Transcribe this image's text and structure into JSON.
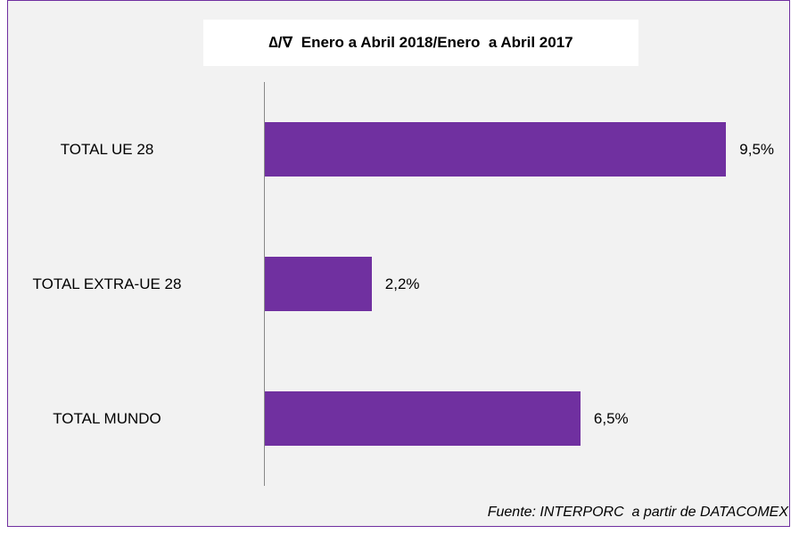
{
  "chart_data": {
    "type": "hbar",
    "title": "∆/∇  Enero a Abril 2018/Enero  a Abril 2017",
    "categories": [
      "TOTAL UE 28",
      "TOTAL EXTRA-UE 28",
      "TOTAL MUNDO"
    ],
    "values": [
      9.5,
      2.2,
      6.5
    ],
    "value_labels": [
      "9,5%",
      "2,2%",
      "6,5%"
    ],
    "color": "#7030a0",
    "source": "Fuente: INTERPORC  a partir de DATACOMEX"
  }
}
